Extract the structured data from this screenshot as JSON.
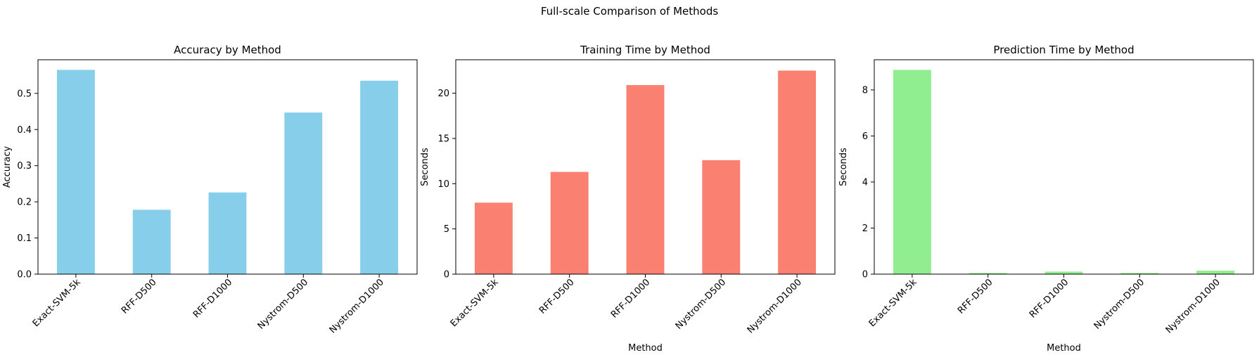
{
  "figure": {
    "suptitle": "Full-scale Comparison of Methods"
  },
  "chart_data": [
    {
      "type": "bar",
      "title": "Accuracy by Method",
      "xlabel": "",
      "ylabel": "Accuracy",
      "categories": [
        "Exact-SVM-5k",
        "RFF-D500",
        "RFF-D1000",
        "Nystrom-D500",
        "Nystrom-D1000"
      ],
      "values": [
        0.565,
        0.178,
        0.226,
        0.447,
        0.535
      ],
      "ylim": [
        0,
        0.593
      ],
      "yticks": [
        0.0,
        0.1,
        0.2,
        0.3,
        0.4,
        0.5
      ],
      "ytick_labels": [
        "0.0",
        "0.1",
        "0.2",
        "0.3",
        "0.4",
        "0.5"
      ],
      "color": "#87CEEB",
      "grid": false
    },
    {
      "type": "bar",
      "title": "Training Time by Method",
      "xlabel": "Method",
      "ylabel": "Seconds",
      "categories": [
        "Exact-SVM-5k",
        "RFF-D500",
        "RFF-D1000",
        "Nystrom-D500",
        "Nystrom-D1000"
      ],
      "values": [
        7.9,
        11.3,
        20.9,
        12.6,
        22.5
      ],
      "ylim": [
        0,
        23.7
      ],
      "yticks": [
        0,
        5,
        10,
        15,
        20
      ],
      "ytick_labels": [
        "0",
        "5",
        "10",
        "15",
        "20"
      ],
      "color": "#FA8072",
      "grid": false
    },
    {
      "type": "bar",
      "title": "Prediction Time by Method",
      "xlabel": "Method",
      "ylabel": "Seconds",
      "categories": [
        "Exact-SVM-5k",
        "RFF-D500",
        "RFF-D1000",
        "Nystrom-D500",
        "Nystrom-D1000"
      ],
      "values": [
        8.87,
        0.05,
        0.11,
        0.05,
        0.15
      ],
      "ylim": [
        0,
        9.31
      ],
      "yticks": [
        0,
        2,
        4,
        6,
        8
      ],
      "ytick_labels": [
        "0",
        "2",
        "4",
        "6",
        "8"
      ],
      "color": "#90EE90",
      "grid": false
    }
  ]
}
